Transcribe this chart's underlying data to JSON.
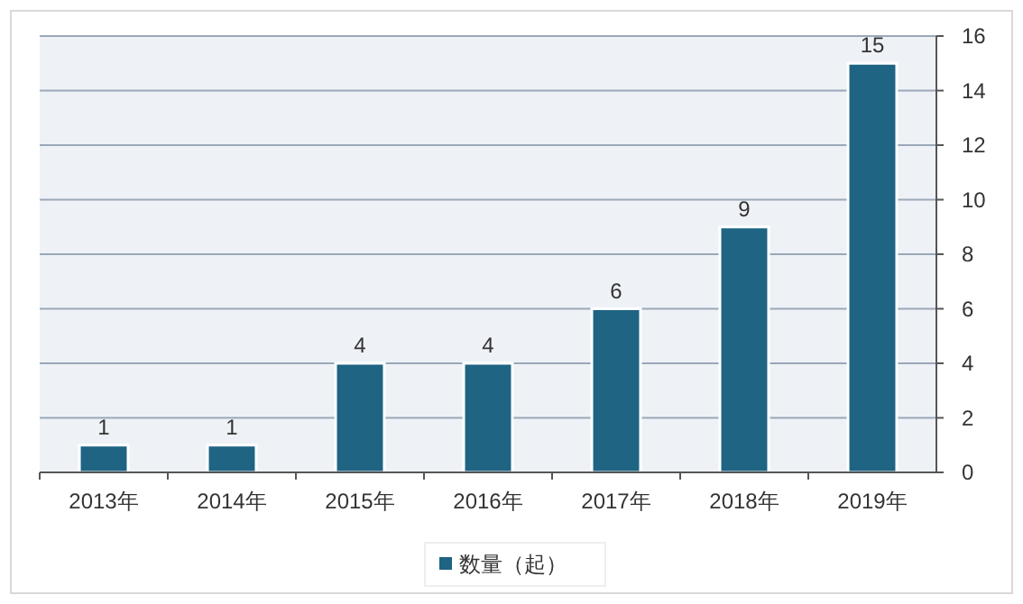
{
  "chart_data": {
    "type": "bar",
    "categories": [
      "2013年",
      "2014年",
      "2015年",
      "2016年",
      "2017年",
      "2018年",
      "2019年"
    ],
    "series": [
      {
        "name": "数量（起）",
        "color": "#1f6483",
        "values": [
          1,
          1,
          4,
          4,
          6,
          9,
          15
        ]
      }
    ],
    "ylim": [
      0,
      16
    ],
    "yticks": [
      0,
      2,
      4,
      6,
      8,
      10,
      12,
      14,
      16
    ],
    "grid": "y",
    "data_labels": true,
    "legend": "bottom"
  }
}
